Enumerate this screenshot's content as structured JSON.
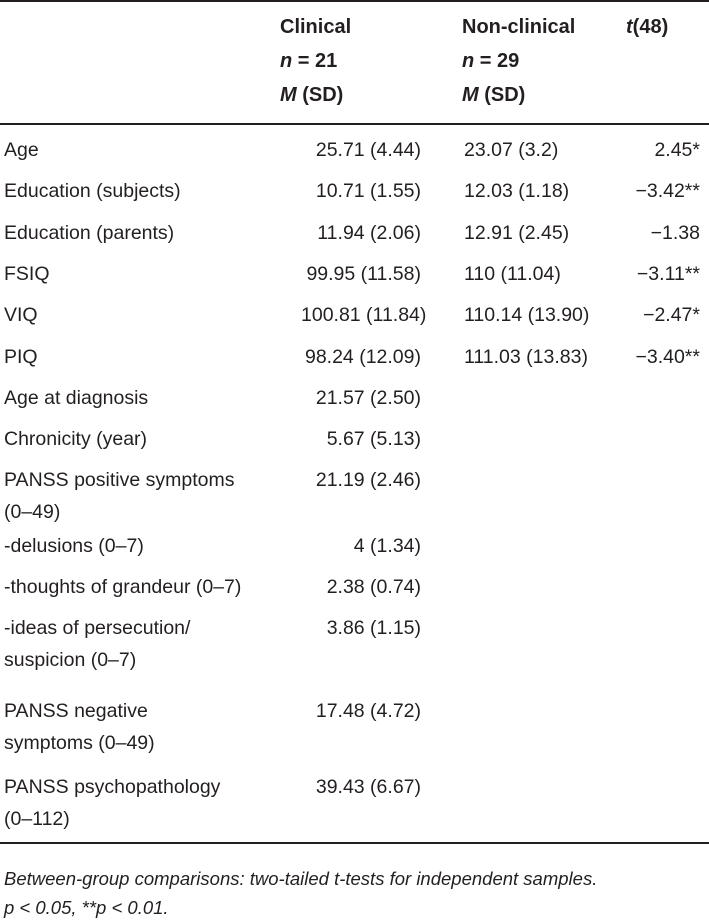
{
  "header": {
    "clinical": {
      "title": "Clinical",
      "n_label": "n",
      "n_value": " = 21",
      "stat_m": "M",
      "stat_sd": " (SD)"
    },
    "nonclinical": {
      "title": "Non-clinical",
      "n_label": "n",
      "n_value": " = 29",
      "stat_m": "M",
      "stat_sd": " (SD)"
    },
    "t": {
      "t_symbol": "t",
      "df": "(48)"
    }
  },
  "rows": [
    {
      "label": [
        "Age"
      ],
      "clinical": "25.71 (4.44)",
      "nonclinical": "23.07 (3.2)",
      "t": "2.45*"
    },
    {
      "label": [
        "Education (subjects)"
      ],
      "clinical": "10.71 (1.55)",
      "nonclinical": "12.03 (1.18)",
      "t": "−3.42**"
    },
    {
      "label": [
        "Education (parents)"
      ],
      "clinical": "11.94 (2.06)",
      "nonclinical": "12.91 (2.45)",
      "t": "−1.38"
    },
    {
      "label": [
        "FSIQ"
      ],
      "clinical": "99.95 (11.58)",
      "nonclinical": "110 (11.04)",
      "t": "−3.11**"
    },
    {
      "label": [
        "VIQ"
      ],
      "clinical": "100.81 (11.84)",
      "nonclinical": "110.14 (13.90)",
      "t": "−2.47*"
    },
    {
      "label": [
        "PIQ"
      ],
      "clinical": "98.24 (12.09)",
      "nonclinical": "111.03 (13.83)",
      "t": "−3.40**"
    },
    {
      "label": [
        "Age at diagnosis"
      ],
      "clinical": "21.57 (2.50)",
      "nonclinical": "",
      "t": ""
    },
    {
      "label": [
        "Chronicity (year)"
      ],
      "clinical": "5.67 (5.13)",
      "nonclinical": "",
      "t": ""
    },
    {
      "label": [
        "PANSS positive symptoms",
        "(0–49)"
      ],
      "clinical": "21.19 (2.46)",
      "nonclinical": "",
      "t": ""
    },
    {
      "label": [
        "-delusions (0–7)"
      ],
      "clinical": "4 (1.34)",
      "nonclinical": "",
      "t": ""
    },
    {
      "label": [
        "-thoughts of grandeur (0–7)"
      ],
      "clinical": "2.38 (0.74)",
      "nonclinical": "",
      "t": ""
    },
    {
      "label": [
        "-ideas of persecution/",
        "suspicion (0–7)"
      ],
      "clinical": "3.86 (1.15)",
      "nonclinical": "",
      "t": ""
    },
    {
      "label": [
        "PANSS negative",
        "symptoms (0–49)"
      ],
      "clinical": "17.48 (4.72)",
      "nonclinical": "",
      "t": ""
    },
    {
      "label": [
        "PANSS psychopathology",
        "(0–112)"
      ],
      "clinical": "39.43 (6.67)",
      "nonclinical": "",
      "t": ""
    }
  ],
  "notes": {
    "line1": "Between-group comparisons: two-tailed t-tests for independent samples.",
    "line2": "p < 0.05, **p < 0.01."
  }
}
